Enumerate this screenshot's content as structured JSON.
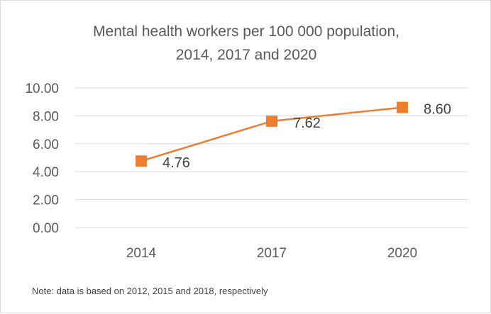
{
  "chart_data": {
    "type": "line",
    "title_lines": [
      "Mental health workers per 100 000 population,",
      "2014, 2017 and 2020"
    ],
    "categories": [
      "2014",
      "2017",
      "2020"
    ],
    "series": [
      {
        "values": [
          4.76,
          7.62,
          8.6
        ],
        "value_labels": [
          "4.76",
          "7.62",
          "8.60"
        ],
        "color": "#ED7D31",
        "marker": "square"
      }
    ],
    "ylim": [
      0,
      10
    ],
    "y_ticks": [
      0,
      2,
      4,
      6,
      8,
      10
    ],
    "y_tick_labels": [
      "0.00",
      "2.00",
      "4.00",
      "6.00",
      "8.00",
      "10.00"
    ],
    "grid": true,
    "gridline_color": "#d9d9d9",
    "legend": "none"
  },
  "footnote": "Note: data is based on 2012, 2015 and 2018, respectively"
}
